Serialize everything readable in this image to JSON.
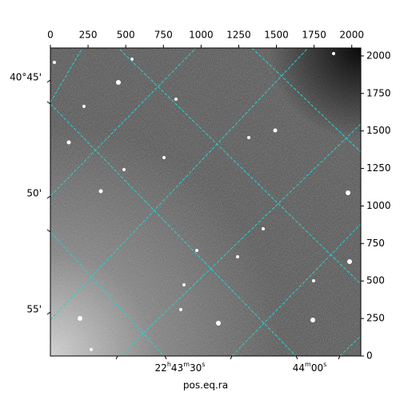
{
  "chart_data": {
    "type": "image",
    "xlabel": "pos.eq.ra",
    "xlim": [
      0,
      2060
    ],
    "xticks": [
      0,
      250,
      500,
      750,
      1000,
      1250,
      1500,
      1750,
      2000
    ],
    "ylim": [
      0,
      2053
    ],
    "yticks": [
      0,
      250,
      500,
      750,
      1000,
      1250,
      1500,
      1750,
      2000
    ],
    "ra_ticks": [
      "22h43m30s",
      "44m00s"
    ],
    "dec_ticks": [
      "40°45'",
      "50'",
      "55'"
    ],
    "grid_color": "#22d3d3"
  }
}
